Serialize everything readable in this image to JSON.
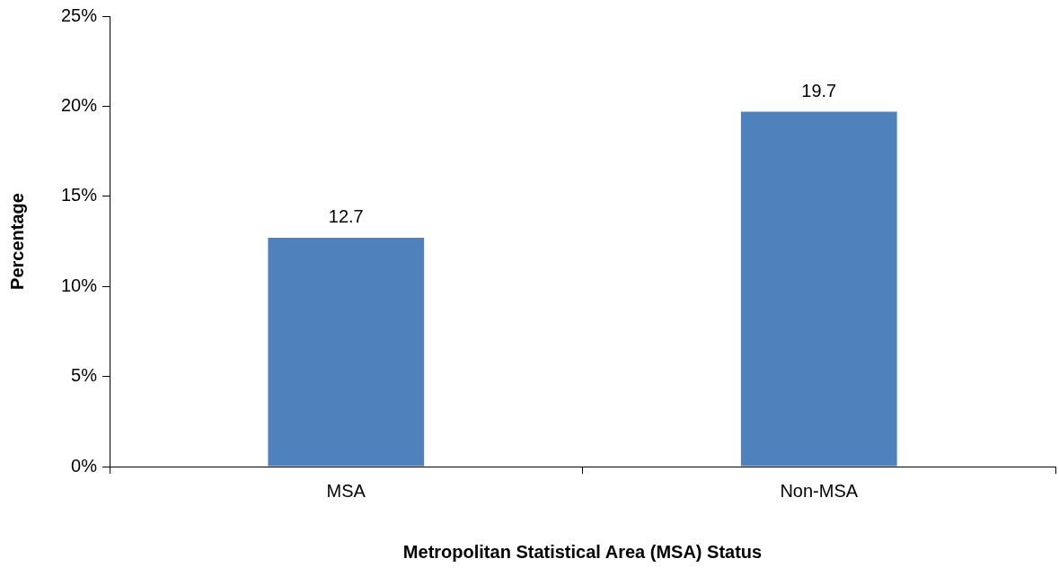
{
  "chart_data": {
    "type": "bar",
    "xlabel": "Metropolitan Statistical Area (MSA) Status",
    "ylabel": "Percentage",
    "categories": [
      "MSA",
      "Non-MSA"
    ],
    "values": [
      12.7,
      19.7
    ],
    "color": "#4f81bd",
    "ylim": [
      0,
      25
    ],
    "yticks": [
      {
        "value": 0,
        "label": "0%"
      },
      {
        "value": 5,
        "label": "5%"
      },
      {
        "value": 10,
        "label": "10%"
      },
      {
        "value": 15,
        "label": "15%"
      },
      {
        "value": 20,
        "label": "20%"
      },
      {
        "value": 25,
        "label": "25%"
      }
    ],
    "data_labels": true,
    "grid": false,
    "legend": false
  }
}
